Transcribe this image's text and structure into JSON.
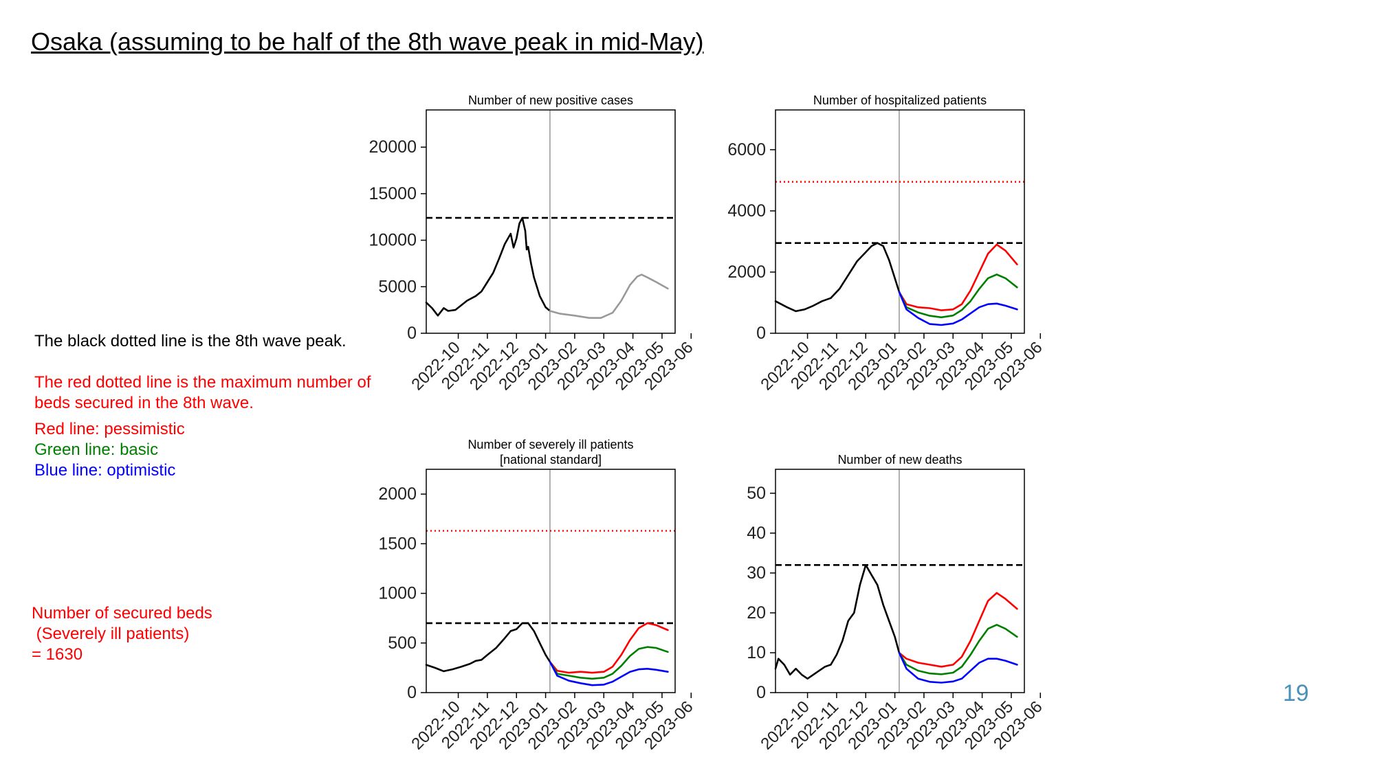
{
  "slide": {
    "title": "Osaka (assuming to be half of the 8th wave peak in mid-May)",
    "note_black": "The black dotted line is the 8th wave peak.",
    "note_red": "The red dotted line is the maximum number of beds secured in the 8th wave.",
    "legend": {
      "red": "Red line: pessimistic",
      "green": "Green line: basic",
      "blue": "Blue line: optimistic"
    },
    "beds_note": "Number of secured beds\n (Severely ill patients)\n= 1630",
    "page_number": "19"
  },
  "colors": {
    "black": "#000000",
    "red": "#ff0000",
    "green": "#008000",
    "blue": "#0000ff",
    "gray": "#999999"
  },
  "chart_data": [
    {
      "id": "cases",
      "type": "line",
      "title": [
        "Number of new positive cases"
      ],
      "x_ticks": [
        "2022-10",
        "2022-11",
        "2022-12",
        "2023-01",
        "2023-02",
        "2023-03",
        "2023-04",
        "2023-05",
        "2023-06"
      ],
      "ylim": [
        0,
        24000
      ],
      "y_ticks": [
        0,
        5000,
        10000,
        15000,
        20000
      ],
      "vline": 4.15,
      "hlines": [
        {
          "y": 12400,
          "color": "black",
          "style": "dashed"
        }
      ],
      "series": [
        {
          "color": "black",
          "points": [
            [
              -0.1,
              3300
            ],
            [
              0.1,
              2700
            ],
            [
              0.3,
              1900
            ],
            [
              0.5,
              2700
            ],
            [
              0.65,
              2400
            ],
            [
              0.9,
              2500
            ],
            [
              1.1,
              3000
            ],
            [
              1.3,
              3500
            ],
            [
              1.6,
              4000
            ],
            [
              1.8,
              4500
            ],
            [
              2.0,
              5500
            ],
            [
              2.2,
              6500
            ],
            [
              2.4,
              8000
            ],
            [
              2.6,
              9600
            ],
            [
              2.8,
              10700
            ],
            [
              2.9,
              9200
            ],
            [
              3.0,
              10200
            ],
            [
              3.1,
              11800
            ],
            [
              3.2,
              12400
            ],
            [
              3.3,
              11000
            ],
            [
              3.35,
              9000
            ],
            [
              3.4,
              9300
            ],
            [
              3.5,
              7500
            ],
            [
              3.6,
              6000
            ],
            [
              3.8,
              4000
            ],
            [
              4.0,
              2800
            ],
            [
              4.15,
              2400
            ]
          ]
        },
        {
          "color": "gray",
          "points": [
            [
              4.15,
              2400
            ],
            [
              4.5,
              2100
            ],
            [
              5.0,
              1900
            ],
            [
              5.5,
              1650
            ],
            [
              5.9,
              1650
            ],
            [
              6.3,
              2200
            ],
            [
              6.6,
              3500
            ],
            [
              6.9,
              5200
            ],
            [
              7.15,
              6100
            ],
            [
              7.3,
              6300
            ],
            [
              7.5,
              6000
            ],
            [
              7.8,
              5500
            ],
            [
              8.2,
              4800
            ]
          ]
        }
      ]
    },
    {
      "id": "hospitalized",
      "type": "line",
      "title": [
        "Number of hospitalized patients"
      ],
      "x_ticks": [
        "2022-10",
        "2022-11",
        "2022-12",
        "2023-01",
        "2023-02",
        "2023-03",
        "2023-04",
        "2023-05",
        "2023-06"
      ],
      "ylim": [
        0,
        7300
      ],
      "y_ticks": [
        0,
        2000,
        4000,
        6000
      ],
      "vline": 4.15,
      "hlines": [
        {
          "y": 4950,
          "color": "red",
          "style": "dotted"
        },
        {
          "y": 2950,
          "color": "black",
          "style": "dashed"
        }
      ],
      "series": [
        {
          "color": "black",
          "points": [
            [
              -0.1,
              1050
            ],
            [
              0.3,
              850
            ],
            [
              0.6,
              720
            ],
            [
              0.9,
              780
            ],
            [
              1.2,
              900
            ],
            [
              1.5,
              1050
            ],
            [
              1.8,
              1150
            ],
            [
              2.1,
              1450
            ],
            [
              2.4,
              1900
            ],
            [
              2.7,
              2350
            ],
            [
              3.0,
              2650
            ],
            [
              3.2,
              2850
            ],
            [
              3.4,
              2950
            ],
            [
              3.6,
              2850
            ],
            [
              3.8,
              2400
            ],
            [
              4.0,
              1800
            ],
            [
              4.15,
              1350
            ]
          ]
        },
        {
          "color": "red",
          "points": [
            [
              4.15,
              1350
            ],
            [
              4.4,
              950
            ],
            [
              4.8,
              850
            ],
            [
              5.2,
              820
            ],
            [
              5.6,
              750
            ],
            [
              6.0,
              780
            ],
            [
              6.3,
              950
            ],
            [
              6.6,
              1400
            ],
            [
              6.9,
              2000
            ],
            [
              7.2,
              2600
            ],
            [
              7.5,
              2900
            ],
            [
              7.8,
              2700
            ],
            [
              8.2,
              2250
            ]
          ]
        },
        {
          "color": "green",
          "points": [
            [
              4.15,
              1350
            ],
            [
              4.4,
              850
            ],
            [
              4.8,
              680
            ],
            [
              5.2,
              570
            ],
            [
              5.6,
              520
            ],
            [
              6.0,
              580
            ],
            [
              6.3,
              760
            ],
            [
              6.6,
              1050
            ],
            [
              6.9,
              1450
            ],
            [
              7.2,
              1800
            ],
            [
              7.5,
              1920
            ],
            [
              7.8,
              1800
            ],
            [
              8.2,
              1500
            ]
          ]
        },
        {
          "color": "blue",
          "points": [
            [
              4.15,
              1350
            ],
            [
              4.4,
              780
            ],
            [
              4.8,
              500
            ],
            [
              5.2,
              300
            ],
            [
              5.6,
              270
            ],
            [
              6.0,
              320
            ],
            [
              6.3,
              450
            ],
            [
              6.6,
              650
            ],
            [
              6.9,
              850
            ],
            [
              7.2,
              950
            ],
            [
              7.5,
              970
            ],
            [
              7.8,
              900
            ],
            [
              8.2,
              780
            ]
          ]
        }
      ]
    },
    {
      "id": "severe",
      "type": "line",
      "title": [
        "Number of severely ill patients",
        "[national standard]"
      ],
      "x_ticks": [
        "2022-10",
        "2022-11",
        "2022-12",
        "2023-01",
        "2023-02",
        "2023-03",
        "2023-04",
        "2023-05",
        "2023-06"
      ],
      "ylim": [
        0,
        2250
      ],
      "y_ticks": [
        0,
        500,
        1000,
        1500,
        2000
      ],
      "vline": 4.15,
      "hlines": [
        {
          "y": 1630,
          "color": "red",
          "style": "dotted"
        },
        {
          "y": 700,
          "color": "black",
          "style": "dashed"
        }
      ],
      "series": [
        {
          "color": "black",
          "points": [
            [
              -0.1,
              280
            ],
            [
              0.2,
              250
            ],
            [
              0.5,
              215
            ],
            [
              0.8,
              235
            ],
            [
              1.1,
              260
            ],
            [
              1.4,
              290
            ],
            [
              1.6,
              320
            ],
            [
              1.8,
              330
            ],
            [
              2.0,
              380
            ],
            [
              2.3,
              450
            ],
            [
              2.6,
              550
            ],
            [
              2.8,
              620
            ],
            [
              3.0,
              640
            ],
            [
              3.2,
              700
            ],
            [
              3.4,
              700
            ],
            [
              3.6,
              620
            ],
            [
              3.8,
              500
            ],
            [
              4.0,
              380
            ],
            [
              4.15,
              310
            ]
          ]
        },
        {
          "color": "red",
          "points": [
            [
              4.15,
              310
            ],
            [
              4.4,
              220
            ],
            [
              4.8,
              200
            ],
            [
              5.2,
              210
            ],
            [
              5.6,
              200
            ],
            [
              6.0,
              210
            ],
            [
              6.3,
              260
            ],
            [
              6.6,
              380
            ],
            [
              6.9,
              530
            ],
            [
              7.2,
              650
            ],
            [
              7.5,
              700
            ],
            [
              7.8,
              680
            ],
            [
              8.2,
              630
            ]
          ]
        },
        {
          "color": "green",
          "points": [
            [
              4.15,
              310
            ],
            [
              4.4,
              190
            ],
            [
              4.8,
              170
            ],
            [
              5.2,
              150
            ],
            [
              5.6,
              140
            ],
            [
              6.0,
              150
            ],
            [
              6.3,
              190
            ],
            [
              6.6,
              270
            ],
            [
              6.9,
              370
            ],
            [
              7.2,
              440
            ],
            [
              7.5,
              460
            ],
            [
              7.8,
              450
            ],
            [
              8.2,
              410
            ]
          ]
        },
        {
          "color": "blue",
          "points": [
            [
              4.15,
              310
            ],
            [
              4.4,
              170
            ],
            [
              4.8,
              120
            ],
            [
              5.2,
              95
            ],
            [
              5.6,
              75
            ],
            [
              6.0,
              80
            ],
            [
              6.3,
              110
            ],
            [
              6.6,
              160
            ],
            [
              6.9,
              210
            ],
            [
              7.2,
              235
            ],
            [
              7.5,
              240
            ],
            [
              7.8,
              230
            ],
            [
              8.2,
              210
            ]
          ]
        }
      ]
    },
    {
      "id": "deaths",
      "type": "line",
      "title": [
        "Number of new deaths"
      ],
      "x_ticks": [
        "2022-10",
        "2022-11",
        "2022-12",
        "2023-01",
        "2023-02",
        "2023-03",
        "2023-04",
        "2023-05",
        "2023-06"
      ],
      "ylim": [
        0,
        56
      ],
      "y_ticks": [
        0,
        10,
        20,
        30,
        40,
        50
      ],
      "vline": 4.15,
      "hlines": [
        {
          "y": 32,
          "color": "black",
          "style": "dashed"
        }
      ],
      "series": [
        {
          "color": "black",
          "points": [
            [
              -0.1,
              6
            ],
            [
              0.0,
              8.5
            ],
            [
              0.2,
              7
            ],
            [
              0.4,
              4.5
            ],
            [
              0.6,
              6
            ],
            [
              0.8,
              4.5
            ],
            [
              1.0,
              3.5
            ],
            [
              1.2,
              4.5
            ],
            [
              1.4,
              5.5
            ],
            [
              1.6,
              6.5
            ],
            [
              1.8,
              7
            ],
            [
              2.0,
              9.5
            ],
            [
              2.2,
              13
            ],
            [
              2.4,
              18
            ],
            [
              2.6,
              20
            ],
            [
              2.8,
              27
            ],
            [
              3.0,
              32
            ],
            [
              3.2,
              29.5
            ],
            [
              3.4,
              27
            ],
            [
              3.6,
              22
            ],
            [
              3.8,
              18
            ],
            [
              4.0,
              14
            ],
            [
              4.15,
              10
            ]
          ]
        },
        {
          "color": "red",
          "points": [
            [
              4.15,
              10
            ],
            [
              4.4,
              8.5
            ],
            [
              4.8,
              7.5
            ],
            [
              5.2,
              7
            ],
            [
              5.6,
              6.5
            ],
            [
              6.0,
              7
            ],
            [
              6.3,
              9
            ],
            [
              6.6,
              13
            ],
            [
              6.9,
              18
            ],
            [
              7.2,
              23
            ],
            [
              7.5,
              25
            ],
            [
              7.8,
              23.5
            ],
            [
              8.2,
              21
            ]
          ]
        },
        {
          "color": "green",
          "points": [
            [
              4.15,
              10
            ],
            [
              4.4,
              7
            ],
            [
              4.8,
              5.5
            ],
            [
              5.2,
              4.8
            ],
            [
              5.6,
              4.6
            ],
            [
              6.0,
              5
            ],
            [
              6.3,
              6.5
            ],
            [
              6.6,
              9.5
            ],
            [
              6.9,
              13
            ],
            [
              7.2,
              16
            ],
            [
              7.5,
              17
            ],
            [
              7.8,
              16
            ],
            [
              8.2,
              14
            ]
          ]
        },
        {
          "color": "blue",
          "points": [
            [
              4.15,
              10
            ],
            [
              4.4,
              6
            ],
            [
              4.8,
              3.5
            ],
            [
              5.2,
              2.7
            ],
            [
              5.6,
              2.5
            ],
            [
              6.0,
              2.8
            ],
            [
              6.3,
              3.5
            ],
            [
              6.6,
              5.5
            ],
            [
              6.9,
              7.5
            ],
            [
              7.2,
              8.5
            ],
            [
              7.5,
              8.5
            ],
            [
              7.8,
              8
            ],
            [
              8.2,
              7
            ]
          ]
        }
      ]
    }
  ]
}
